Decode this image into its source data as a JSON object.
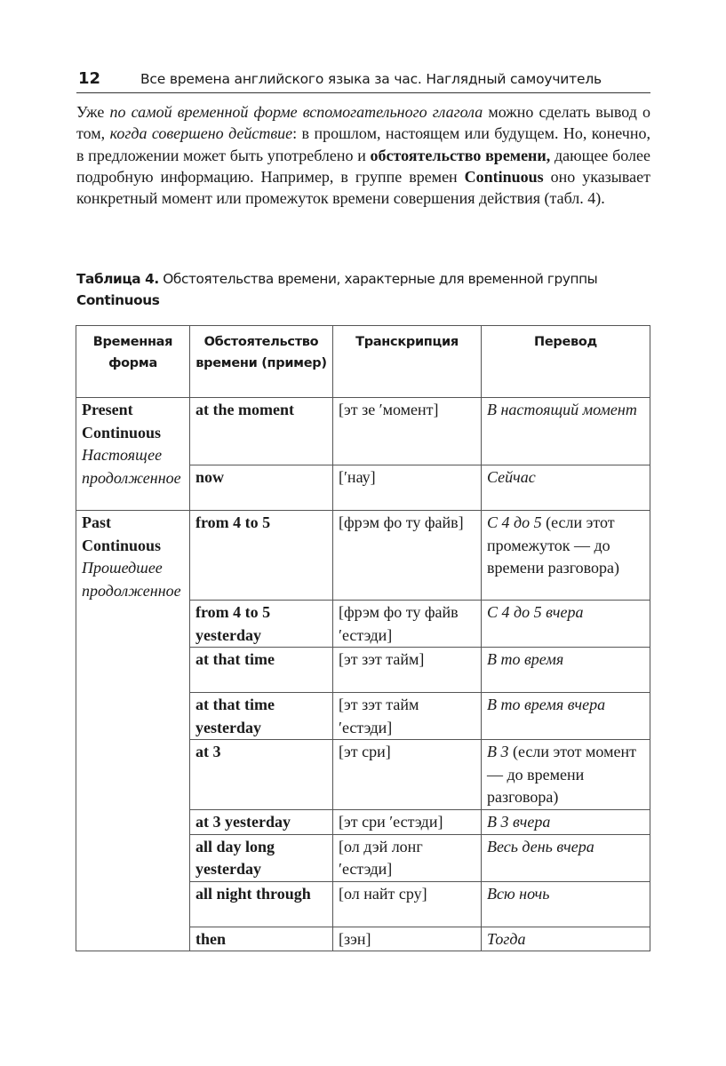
{
  "header": {
    "page_number": "12",
    "running_title": "Все времена английского языка за час. Наглядный самоучитель"
  },
  "paragraph": [
    {
      "t": "Уже ",
      "s": "r"
    },
    {
      "t": "по самой временной форме вспомогательного глагола",
      "s": "i"
    },
    {
      "t": " можно сде­лать вывод о том, ",
      "s": "r"
    },
    {
      "t": "когда совершено действие",
      "s": "i"
    },
    {
      "t": ": в прошлом, настоящем или будущем. Но, конечно, в предложении может быть употреблено и ",
      "s": "r"
    },
    {
      "t": "обстоятельство времени,",
      "s": "b"
    },
    {
      "t": " дающее более подробную информацию. Например, в группе времен ",
      "s": "r"
    },
    {
      "t": "Continuous",
      "s": "b"
    },
    {
      "t": " оно указывает конкретный мо­мент или промежуток времени совершения действия (табл. 4).",
      "s": "r"
    }
  ],
  "caption": {
    "label": "Таблица 4.",
    "text": " Обстоятельства времени, характерные для временной группы",
    "term": "Continuous"
  },
  "table": {
    "headers": [
      "Временная форма",
      "Обстоятельство времени (пример)",
      "Транскрипция",
      "Перевод"
    ],
    "groups": [
      {
        "name": "Present Continuous",
        "translation": "Настоящее продолжен­ное",
        "rows": [
          {
            "adverb": "at the moment",
            "transcription": "[эт зе ′момент]",
            "tr_italic": "В настоящий мо­мент",
            "tr_plain": ""
          },
          {
            "adverb": "now",
            "transcription": "[′нау]",
            "tr_italic": "Сейчас",
            "tr_plain": ""
          }
        ]
      },
      {
        "name": "Past Continuous",
        "translation": "Прошедшее продолжен­ное",
        "rows": [
          {
            "adverb": "from 4 to 5",
            "transcription": "[фрэм фо ту файв]",
            "tr_italic": "С 4 до 5",
            "tr_plain": " (если этот промежуток — до времени разго­вора)"
          },
          {
            "adverb": "from 4 to 5 yesterday",
            "transcription": "[фрэм фо ту файв ′естэди]",
            "tr_italic": "С 4 до 5 вчера",
            "tr_plain": ""
          },
          {
            "adverb": "at that time",
            "transcription": "[эт зэт тайм]",
            "tr_italic": "В то время",
            "tr_plain": ""
          },
          {
            "adverb": "at that time yesterday",
            "transcription": "[эт зэт тайм ′естэди]",
            "tr_italic": "В то время вчера",
            "tr_plain": ""
          },
          {
            "adverb": "at 3",
            "transcription": "[эт сри]",
            "tr_italic": "В 3",
            "tr_plain": " (если этот мо­мент — до време­ни разговора)"
          },
          {
            "adverb": "at 3 yesterday",
            "transcription": "[эт сри ′естэди]",
            "tr_italic": "В 3 вчера",
            "tr_plain": ""
          },
          {
            "adverb": "all day long yesterday",
            "transcription": "[ол дэй лонг ′естэди]",
            "tr_italic": "Весь день вчера",
            "tr_plain": ""
          },
          {
            "adverb": "all night through",
            "transcription": "[ол найт сру]",
            "tr_italic": "Всю ночь",
            "tr_plain": ""
          },
          {
            "adverb": "then",
            "transcription": "[зэн]",
            "tr_italic": "Тогда",
            "tr_plain": ""
          }
        ]
      }
    ]
  }
}
